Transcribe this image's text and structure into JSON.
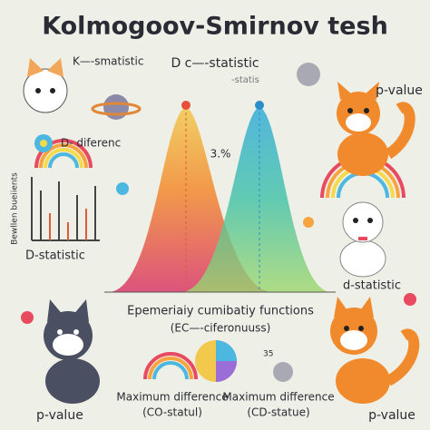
{
  "header": {
    "title": "Kolmogoov-Smirnov tesh"
  },
  "labels": {
    "top_left": "K—-smatistic",
    "top_center": "D c—-statistic",
    "top_center_sub": "-statis",
    "top_right": "p-value",
    "left_mid": "D- diferenc",
    "center_value": "3.%",
    "axis_label": "Bewllen bueiients",
    "left_bottom": "D-statistic",
    "right_mid": "d-statistic",
    "functions": "Epemeriaiy cumibatiy functions",
    "functions_sub": "(EC—-ciferonuuss)",
    "small_number": "35",
    "bottom_left": "p-value",
    "max_diff_1": "Maximum difference",
    "max_diff_1_sub": "(CO-statul)",
    "max_diff_2": "Maximum difference",
    "max_diff_2_sub": "(CD-statue)",
    "bottom_right": "p-value"
  }
}
